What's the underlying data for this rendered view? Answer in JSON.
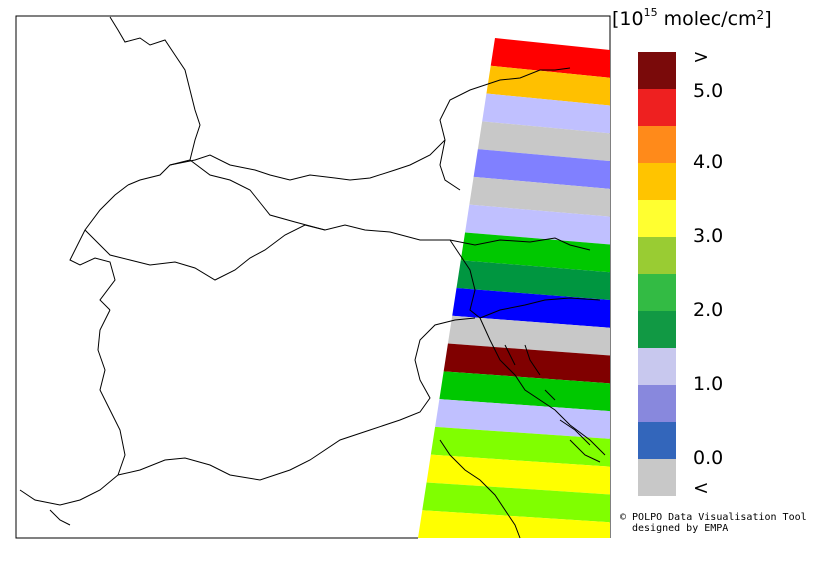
{
  "legend": {
    "unit_base": "[10",
    "unit_exp": "15",
    "unit_text": " molec/cm",
    "unit_sq": "2",
    "unit_close": "]",
    "labels": [
      ">",
      "5.0",
      "4.0",
      "3.0",
      "2.0",
      "1.0",
      "0.0",
      "<"
    ],
    "colors": [
      "#7a0a0a",
      "#ee2020",
      "#ff8a1a",
      "#ffc400",
      "#ffff30",
      "#99cc33",
      "#33bb44",
      "#119944",
      "#c8c8ee",
      "#8888dd",
      "#3366bb",
      "#c8c8c8"
    ]
  },
  "swath": {
    "strip_colors": [
      "#ff0000",
      "#ffc000",
      "#c0c0ff",
      "#c8c8c8",
      "#8080ff",
      "#c8c8c8",
      "#c0c0ff",
      "#00c800",
      "#009640",
      "#0000ff",
      "#c8c8c8",
      "#800000",
      "#00c800",
      "#c0c0ff",
      "#80ff00",
      "#ffff00",
      "#80ff00",
      "#ffff00"
    ]
  },
  "credit": {
    "line1": "© POLPO Data Visualisation Tool",
    "line2": "designed by EMPA"
  }
}
